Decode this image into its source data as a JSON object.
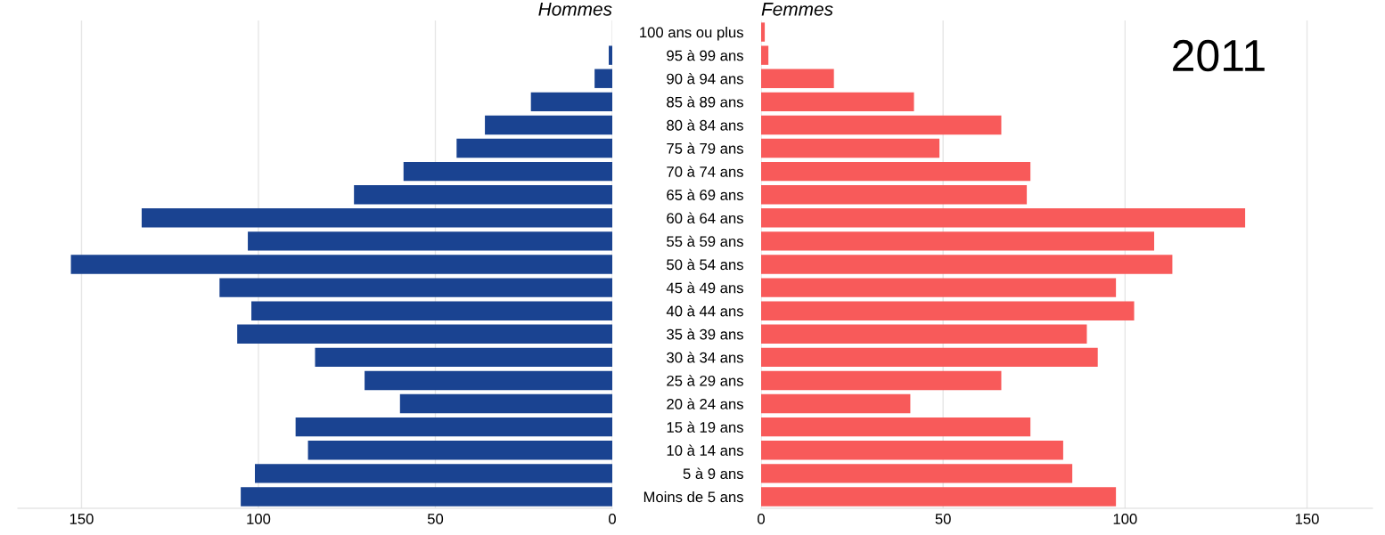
{
  "chart_data": [
    {
      "type": "bar",
      "orientation": "horizontal",
      "title": "Hommes",
      "color": "#1a4391",
      "xlim": [
        168,
        0
      ],
      "xticks": [
        150,
        100,
        50,
        0
      ],
      "grid": "x",
      "tick_labels": "x",
      "categories": [
        null,
        null,
        null,
        null,
        null,
        null,
        null,
        null,
        null,
        null,
        null,
        null,
        null,
        null,
        null,
        null,
        null,
        null,
        null,
        null,
        null
      ],
      "values": [
        0,
        1,
        5,
        23,
        36,
        44,
        59,
        73,
        133,
        103,
        153,
        111,
        102,
        106,
        84,
        70,
        60,
        89.5,
        86,
        101,
        105
      ]
    },
    {
      "type": "bar",
      "orientation": "horizontal",
      "title": "Femmes",
      "color": "#f85a5a",
      "xlim": [
        0,
        168
      ],
      "xticks": [
        0,
        50,
        100,
        150
      ],
      "grid": "x",
      "annotations": [
        "2011"
      ],
      "categories": [
        "100 ans ou plus",
        "95 à 99 ans",
        "90 à 94 ans",
        "85 à 89 ans",
        "80 à 84 ans",
        "75 à 79 ans",
        "70 à 74 ans",
        "65 à 69 ans",
        "60 à 64 ans",
        "55 à 59 ans",
        "50 à 54 ans",
        "45 à 49 ans",
        "40 à 44 ans",
        "35 à 39 ans",
        "30 à 34 ans",
        "25 à 29 ans",
        "20 à 24 ans",
        "15 à 19 ans",
        "10 à 14 ans",
        "5 à 9 ans",
        "Moins de 5 ans"
      ],
      "values": [
        1,
        2,
        20,
        42,
        66,
        49,
        74,
        73,
        133,
        108,
        113,
        97.5,
        102.5,
        89.5,
        92.5,
        66,
        41,
        74,
        83,
        85.5,
        97.5
      ]
    }
  ]
}
